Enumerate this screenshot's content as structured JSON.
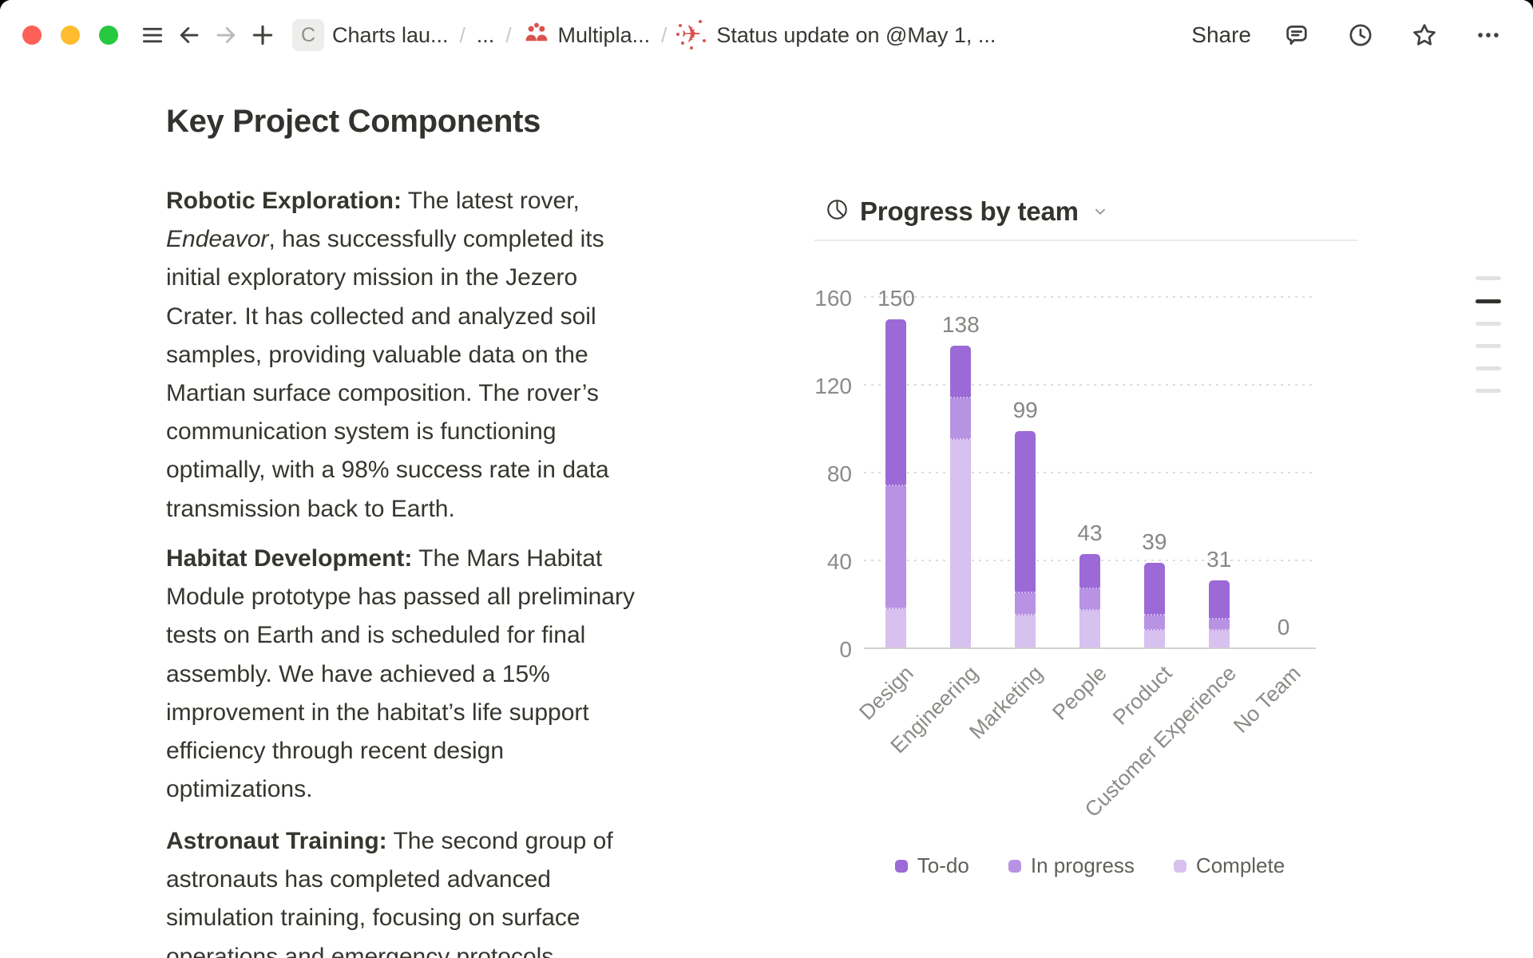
{
  "window": {
    "traffic_lights": [
      {
        "name": "close",
        "color": "#fe5f57"
      },
      {
        "name": "minimize",
        "color": "#febc2e"
      },
      {
        "name": "zoom",
        "color": "#28c840"
      }
    ],
    "toolbar": {
      "breadcrumb": {
        "separator": "/",
        "items": [
          {
            "icon": "letter-c",
            "label": "Charts lau..."
          },
          {
            "icon": null,
            "label": "..."
          },
          {
            "icon": "people",
            "label": "Multipla..."
          },
          {
            "icon": "plane",
            "label": "Status update on @May 1, ..."
          }
        ]
      },
      "share_label": "Share"
    }
  },
  "document": {
    "heading": "Key Project Components",
    "paragraphs": [
      {
        "lines": [
          [
            {
              "t": "Robotic Exploration:",
              "b": true
            },
            {
              "t": " The latest rover,"
            }
          ],
          [
            {
              "t": "Endeavor",
              "i": true
            },
            {
              "t": ", has successfully completed its"
            }
          ],
          [
            {
              "t": "initial exploratory mission in the Jezero"
            }
          ],
          [
            {
              "t": "Crater. It has collected and analyzed soil"
            }
          ],
          [
            {
              "t": "samples, providing valuable data on the"
            }
          ],
          [
            {
              "t": "Martian surface composition. The rover’s"
            }
          ],
          [
            {
              "t": "communication system is functioning"
            }
          ],
          [
            {
              "t": "optimally, with a 98% success rate in data"
            }
          ],
          [
            {
              "t": "transmission back to Earth."
            }
          ]
        ]
      },
      {
        "lines": [
          [
            {
              "t": "Habitat Development:",
              "b": true
            },
            {
              "t": " The Mars Habitat"
            }
          ],
          [
            {
              "t": "Module prototype has passed all preliminary"
            }
          ],
          [
            {
              "t": "tests on Earth and is scheduled for final"
            }
          ],
          [
            {
              "t": "assembly. We have achieved a 15%"
            }
          ],
          [
            {
              "t": "improvement in the habitat’s life support"
            }
          ],
          [
            {
              "t": "efficiency through recent design"
            }
          ],
          [
            {
              "t": "optimizations."
            }
          ]
        ]
      },
      {
        "lines": [
          [
            {
              "t": "Astronaut Training:",
              "b": true
            },
            {
              "t": " The second group of"
            }
          ],
          [
            {
              "t": "astronauts has completed advanced"
            }
          ],
          [
            {
              "t": "simulation training, focusing on surface"
            }
          ],
          [
            {
              "t": "operations and emergency protocols."
            }
          ]
        ]
      }
    ]
  },
  "chart_data": {
    "type": "bar",
    "stacked": true,
    "title": "Progress by team",
    "categories": [
      "Design",
      "Engineering",
      "Marketing",
      "People",
      "Product",
      "Customer Experience",
      "No Team"
    ],
    "series": [
      {
        "name": "To-do",
        "color": "#9c6ad6",
        "values": [
          76,
          24,
          74,
          16,
          24,
          18,
          0
        ]
      },
      {
        "name": "In progress",
        "color": "#b893e3",
        "values": [
          56,
          19,
          10,
          10,
          7,
          5,
          0
        ]
      },
      {
        "name": "Complete",
        "color": "#d6c1ef",
        "values": [
          18,
          95,
          15,
          17,
          8,
          8,
          0
        ]
      }
    ],
    "totals": [
      150,
      138,
      99,
      43,
      39,
      31,
      0
    ],
    "ylim": [
      0,
      160
    ],
    "yticks": [
      0,
      40,
      80,
      120,
      160
    ],
    "grid": "dotted-horizontal",
    "legend_position": "bottom",
    "value_labels": true
  },
  "outline_indicator": {
    "line_count": 6,
    "active_index": 1
  }
}
